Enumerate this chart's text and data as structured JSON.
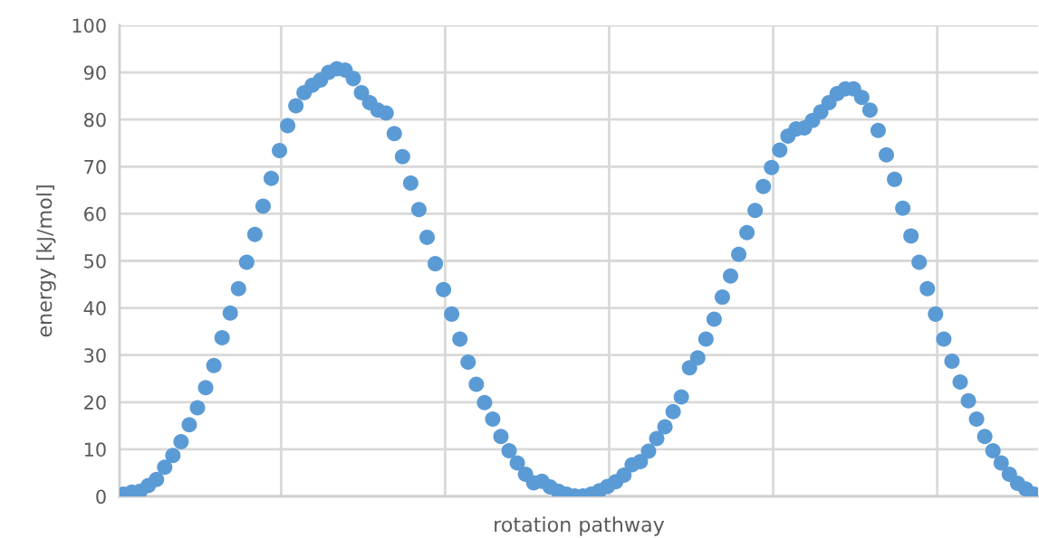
{
  "chart_data": {
    "type": "scatter",
    "xlabel": "rotation pathway",
    "ylabel": "energy [kJ/mol]",
    "categories": [
      null,
      null,
      null,
      null,
      null,
      null,
      null,
      null,
      null,
      null,
      null,
      null,
      null,
      null,
      null,
      null,
      null,
      null,
      null,
      null,
      null,
      null,
      null,
      null,
      null,
      null,
      null,
      null,
      null,
      null,
      null,
      null,
      null,
      null,
      null,
      null,
      null,
      null,
      null,
      null,
      null,
      null,
      null,
      null,
      null,
      null,
      null,
      null,
      null,
      null,
      null,
      null,
      null,
      null,
      null,
      null,
      null,
      null,
      null,
      null,
      null,
      null,
      null,
      null,
      null,
      null,
      null,
      null,
      null,
      null,
      null,
      null,
      null,
      null,
      null,
      null,
      null,
      null,
      null,
      null,
      null,
      null,
      null,
      null,
      null,
      null,
      null,
      null,
      null,
      null,
      null,
      null,
      null,
      null,
      null,
      null,
      null,
      null,
      null,
      null,
      null,
      null,
      null,
      null,
      null,
      null,
      null,
      null,
      null,
      null,
      null,
      null
    ],
    "ylim": [
      0,
      100
    ],
    "yticks": [
      0,
      10,
      20,
      30,
      40,
      50,
      60,
      70,
      80,
      90,
      100
    ],
    "grid": true,
    "marker": "circle",
    "series": [
      {
        "color": "#5b9bd5",
        "values": [
          0.5,
          0.9,
          1.1,
          2.3,
          3.6,
          6.2,
          8.7,
          11.6,
          15.2,
          18.8,
          23.1,
          27.8,
          33.7,
          38.9,
          44.1,
          49.7,
          55.6,
          61.6,
          67.5,
          73.4,
          78.7,
          82.9,
          85.7,
          87.3,
          88.4,
          90.0,
          90.8,
          90.5,
          88.7,
          85.7,
          83.6,
          82.0,
          81.4,
          77.0,
          72.1,
          66.5,
          60.9,
          55.0,
          49.4,
          43.9,
          38.7,
          33.4,
          28.5,
          23.8,
          19.9,
          16.4,
          12.7,
          9.7,
          7.1,
          4.7,
          2.9,
          3.2,
          2.0,
          1.1,
          0.5,
          0.1,
          0.1,
          0.5,
          1.2,
          2.1,
          3.1,
          4.5,
          6.7,
          7.4,
          9.6,
          12.3,
          14.8,
          18.0,
          21.1,
          27.3,
          29.4,
          33.4,
          37.6,
          42.3,
          46.8,
          51.4,
          56.0,
          60.7,
          65.8,
          69.8,
          73.5,
          76.5,
          78.0,
          78.2,
          79.8,
          81.6,
          83.6,
          85.5,
          86.5,
          86.5,
          84.7,
          82.0,
          77.7,
          72.5,
          67.3,
          61.2,
          55.3,
          49.7,
          44.1,
          38.7,
          33.4,
          28.7,
          24.3,
          20.3,
          16.4,
          12.7,
          9.7,
          7.1,
          4.7,
          2.8,
          1.6,
          0.5
        ]
      }
    ]
  }
}
